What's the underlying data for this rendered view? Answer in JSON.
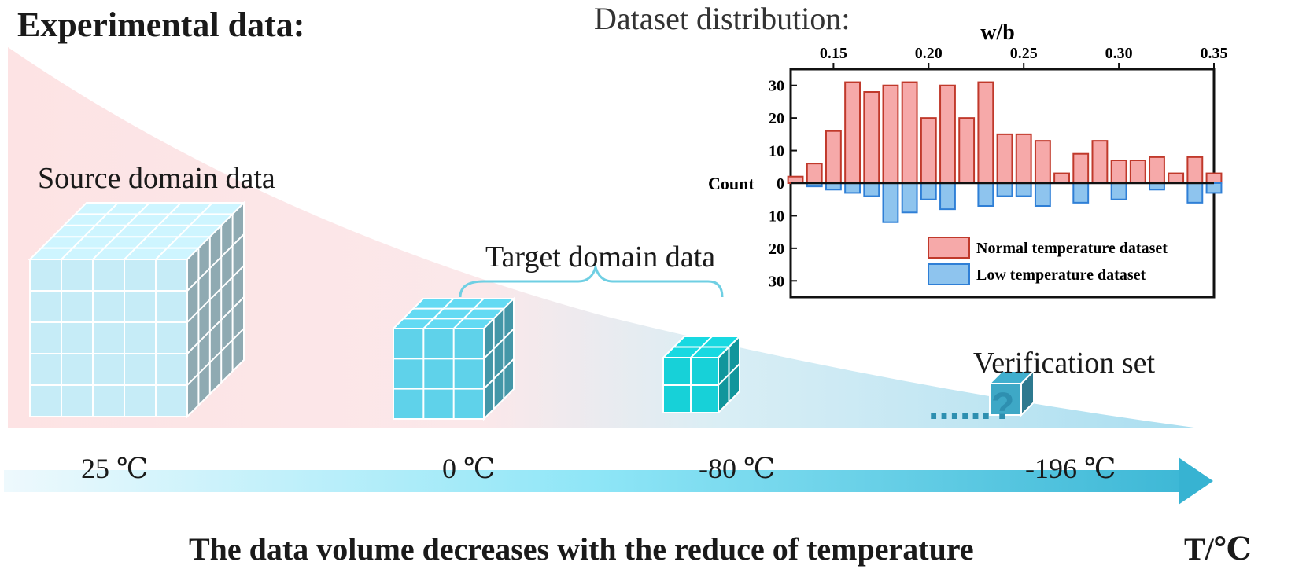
{
  "title": "Experimental data:",
  "labels": {
    "source": "Source domain data",
    "target": "Target domain data",
    "verification": "Verification set",
    "question": "......?"
  },
  "temperatures": [
    "25 ℃",
    "0 ℃",
    "-80 ℃",
    "-196 ℃"
  ],
  "caption": "The data volume decreases with the reduce of temperature",
  "axis_unit": "T/℃",
  "colors": {
    "source_cube": "#c6ecf7",
    "target_cube_1": "#5fd2ea",
    "target_cube_2": "#17d1d8",
    "verif_cube": "#3ea8c6",
    "normal_bar": "#f6a9a9",
    "low_bar": "#8ec4ee"
  },
  "chart_data": {
    "type": "bar",
    "title": "Dataset distribution:",
    "xlabel": "w/b",
    "ylabel": "Count",
    "xticks": [
      "0.15",
      "0.20",
      "0.25",
      "0.30",
      "0.35"
    ],
    "xlim": [
      0.1275,
      0.35
    ],
    "yticks_up": [
      "30",
      "20",
      "10",
      "0"
    ],
    "yticks_down": [
      "10",
      "20",
      "30"
    ],
    "ylim": [
      -35,
      35
    ],
    "x": [
      0.13,
      0.14,
      0.15,
      0.16,
      0.17,
      0.18,
      0.19,
      0.2,
      0.21,
      0.22,
      0.23,
      0.24,
      0.25,
      0.26,
      0.27,
      0.28,
      0.29,
      0.3,
      0.31,
      0.32,
      0.33,
      0.34,
      0.35
    ],
    "series": [
      {
        "name": "Normal temperature dataset",
        "color": "#f6a9a9",
        "values": [
          2,
          6,
          16,
          31,
          28,
          30,
          31,
          20,
          30,
          20,
          31,
          15,
          15,
          13,
          3,
          9,
          13,
          7,
          7,
          8,
          3,
          8,
          3
        ]
      },
      {
        "name": "Low temperature dataset",
        "color": "#8ec4ee",
        "values": [
          0,
          1,
          2,
          3,
          4,
          12,
          9,
          5,
          8,
          0,
          7,
          4,
          4,
          7,
          0,
          6,
          0,
          5,
          0,
          2,
          0,
          6,
          3
        ]
      }
    ]
  }
}
